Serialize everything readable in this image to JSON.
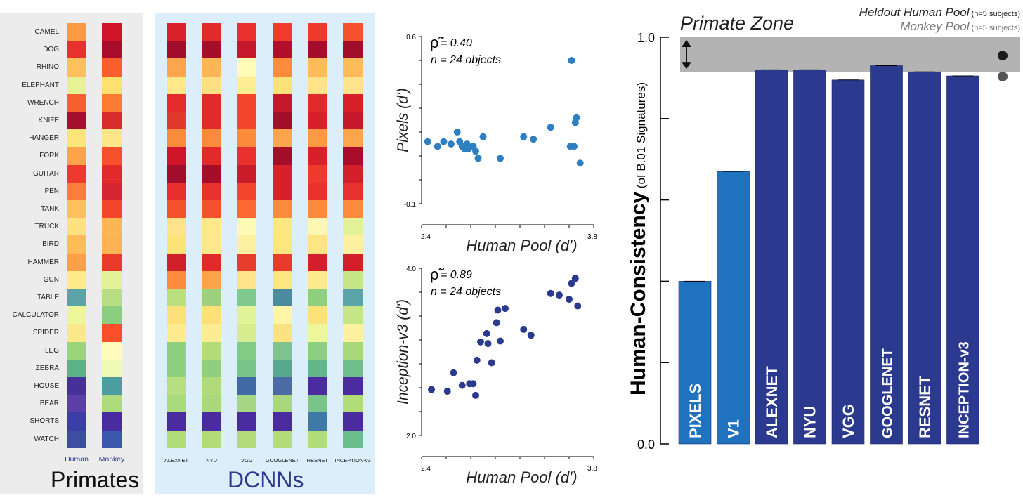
{
  "primates": {
    "title": "Primates",
    "columns": [
      "Human",
      "Monkey"
    ],
    "column_color": "#2b3a8f"
  },
  "dcnns": {
    "title": "DCNNs",
    "title_color": "#2b3a8f",
    "columns": [
      "ALEXNET",
      "NYU",
      "VGG",
      "GOOGLENET",
      "RESNET",
      "INCEPTION-v3"
    ]
  },
  "objects": [
    "CAMEL",
    "DOG",
    "RHINO",
    "ELEPHANT",
    "WRENCH",
    "KNIFE",
    "HANGER",
    "FORK",
    "GUITAR",
    "PEN",
    "TANK",
    "TRUCK",
    "BIRD",
    "HAMMER",
    "GUN",
    "TABLE",
    "CALCULATOR",
    "SPIDER",
    "LEG",
    "ZEBRA",
    "HOUSE",
    "BEAR",
    "SHORTS",
    "WATCH"
  ],
  "heatmap_colors": {
    "Human": [
      "#fb9a43",
      "#e8312c",
      "#fdc05c",
      "#e6f295",
      "#f5602e",
      "#a40f2d",
      "#fde47b",
      "#fba44b",
      "#ee3a2c",
      "#fb7c3c",
      "#fdc05c",
      "#fee282",
      "#fdbc57",
      "#fca04a",
      "#fdeb89",
      "#5aa3a6",
      "#eef69a",
      "#f9e98a",
      "#9cd47a",
      "#5ab287",
      "#47309a",
      "#5b3ea8",
      "#3c3ea8",
      "#3d4ea0"
    ],
    "Monkey": [
      "#d0152a",
      "#aa0c2b",
      "#fb5d2c",
      "#fde06e",
      "#fc7c33",
      "#d72c2c",
      "#fde68a",
      "#f7502c",
      "#e02a2c",
      "#d52530",
      "#f4462c",
      "#fdb656",
      "#fdb254",
      "#e93b2c",
      "#e1f299",
      "#b7dd84",
      "#8bce7f",
      "#fb4e2b",
      "#fefbbb",
      "#f0f9b4",
      "#4c9da0",
      "#aedc7c",
      "#4b2ba0",
      "#3a59ad"
    ],
    "ALEXNET": [
      "#da202a",
      "#a00e2b",
      "#fca54c",
      "#fee88a",
      "#e62c2b",
      "#e13a2c",
      "#fb8c3c",
      "#d0152a",
      "#a00e2b",
      "#e82f2b",
      "#f4522d",
      "#fee38a",
      "#fde478",
      "#d0212a",
      "#fc8a3c",
      "#b9e07c",
      "#fde077",
      "#feeb8e",
      "#8fd07e",
      "#8fd07e",
      "#b7df81",
      "#a9da7b",
      "#4b2ba0",
      "#b2dc7a"
    ],
    "NYU": [
      "#e02a2c",
      "#a40e2b",
      "#fdb656",
      "#fee083",
      "#e02a2c",
      "#e02a2c",
      "#fc8a3c",
      "#e02a2c",
      "#a40e2b",
      "#e8312c",
      "#f4522d",
      "#fee98a",
      "#fde98c",
      "#e02a2c",
      "#fba448",
      "#9ed17f",
      "#fde077",
      "#feec92",
      "#b4dc7a",
      "#90cf80",
      "#b1da7b",
      "#abd87c",
      "#4b2ba0",
      "#b2dc7a"
    ],
    "VGG": [
      "#e8312c",
      "#c4172a",
      "#fefcb7",
      "#feee93",
      "#f4462c",
      "#f4462c",
      "#fc8c3c",
      "#e8312c",
      "#c81c2a",
      "#f4462c",
      "#fc6a32",
      "#fefbb6",
      "#fdf0a0",
      "#e63d2c",
      "#fee38a",
      "#7fc88e",
      "#e1f299",
      "#d6ec8f",
      "#82cb86",
      "#79c489",
      "#3f6aa6",
      "#a7d682",
      "#4b2ba0",
      "#b2dc7a"
    ],
    "GOOGLENET": [
      "#f03a2c",
      "#b30e2b",
      "#fc8c3c",
      "#fde27a",
      "#c4172a",
      "#a40e2b",
      "#fca54c",
      "#a40e2b",
      "#d8202a",
      "#d8202a",
      "#fc8a3c",
      "#fde783",
      "#fde680",
      "#e93b2c",
      "#fde582",
      "#4b8b9f",
      "#fef6a6",
      "#fde281",
      "#7fc48c",
      "#57a98d",
      "#4c6ba6",
      "#a9d87c",
      "#4b2ba0",
      "#b2dc7a"
    ],
    "RESNET": [
      "#ee3a2c",
      "#a40e2b",
      "#fdbc57",
      "#fee388",
      "#e02a2c",
      "#d8202a",
      "#fb9a43",
      "#d8202a",
      "#ee3a2c",
      "#e8312c",
      "#fc8a3c",
      "#fef7b4",
      "#fde583",
      "#d21f2b",
      "#fee98c",
      "#8fd07e",
      "#fde27a",
      "#eef69a",
      "#8ccf80",
      "#63b688",
      "#4b2ba0",
      "#79c489",
      "#3f7aa6",
      "#b2dc7a"
    ],
    "INCEPTION-v3": [
      "#f4522d",
      "#a00e2b",
      "#fdbc57",
      "#fee38a",
      "#d8202a",
      "#c4172a",
      "#fca54c",
      "#aa0c2b",
      "#d21f2b",
      "#e8312c",
      "#fc8a3c",
      "#e1f299",
      "#fdf0a0",
      "#d21f2b",
      "#c6e589",
      "#5aa3a6",
      "#c6e589",
      "#fdf0a0",
      "#a9d87c",
      "#6fbf8c",
      "#4b2ba0",
      "#b2dc7a",
      "#4b2ba0",
      "#6cbd8c"
    ]
  },
  "scatter_top": {
    "rho_label": "= 0.40",
    "n_label": "n = 24 objects",
    "ylabel": "Pixels (d')",
    "xlabel": "Human Pool (d')",
    "xtick_labels": [
      "2.4",
      "3.8"
    ],
    "ytick_labels": [
      "0.6",
      "-0.1"
    ],
    "color": "#2e7fc1"
  },
  "scatter_bottom": {
    "rho_label": "= 0.89",
    "n_label": "n = 24 objects",
    "ylabel": "Inception-v3 (d')",
    "xlabel": "Human Pool (d')",
    "xtick_labels": [
      "2.4",
      "3.8"
    ],
    "ytick_labels": [
      "4.0",
      "2.0"
    ],
    "color": "#2b3a8f"
  },
  "bar_chart": {
    "zone_label": "Primate Zone",
    "legend": [
      {
        "name": "Heldout Human Pool",
        "note": "(n=5 subjects)",
        "color": "#1a1a1a"
      },
      {
        "name": "Monkey Pool",
        "note": "(n=5 subjects)",
        "color": "#555555"
      }
    ],
    "ylabel_main": "Human-Consistency",
    "ylabel_sub": "(of B.01 Signatures)",
    "ytick_labels": [
      "1.0",
      "0.0"
    ],
    "zone_color": "#b3b3b3",
    "pixels_color": "#1f72be",
    "dcnn_color": "#2b3a8f"
  },
  "chart_data": [
    {
      "type": "heatmap",
      "title": "Primates",
      "rows": [
        "CAMEL",
        "DOG",
        "RHINO",
        "ELEPHANT",
        "WRENCH",
        "KNIFE",
        "HANGER",
        "FORK",
        "GUITAR",
        "PEN",
        "TANK",
        "TRUCK",
        "BIRD",
        "HAMMER",
        "GUN",
        "TABLE",
        "CALCULATOR",
        "SPIDER",
        "LEG",
        "ZEBRA",
        "HOUSE",
        "BEAR",
        "SHORTS",
        "WATCH"
      ],
      "columns": [
        "Human",
        "Monkey"
      ]
    },
    {
      "type": "heatmap",
      "title": "DCNNs",
      "rows": [
        "CAMEL",
        "DOG",
        "RHINO",
        "ELEPHANT",
        "WRENCH",
        "KNIFE",
        "HANGER",
        "FORK",
        "GUITAR",
        "PEN",
        "TANK",
        "TRUCK",
        "BIRD",
        "HAMMER",
        "GUN",
        "TABLE",
        "CALCULATOR",
        "SPIDER",
        "LEG",
        "ZEBRA",
        "HOUSE",
        "BEAR",
        "SHORTS",
        "WATCH"
      ],
      "columns": [
        "ALEXNET",
        "NYU",
        "VGG",
        "GOOGLENET",
        "RESNET",
        "INCEPTION-v3"
      ]
    },
    {
      "type": "scatter",
      "xlabel": "Human Pool (d')",
      "ylabel": "Pixels (d')",
      "xlim": [
        2.4,
        3.8
      ],
      "ylim": [
        -0.1,
        0.6
      ],
      "points": [
        [
          2.45,
          0.16
        ],
        [
          2.53,
          0.14
        ],
        [
          2.58,
          0.16
        ],
        [
          2.64,
          0.15
        ],
        [
          2.69,
          0.2
        ],
        [
          2.71,
          0.16
        ],
        [
          2.73,
          0.14
        ],
        [
          2.75,
          0.13
        ],
        [
          2.77,
          0.15
        ],
        [
          2.78,
          0.13
        ],
        [
          2.82,
          0.14
        ],
        [
          2.84,
          0.12
        ],
        [
          2.86,
          0.09
        ],
        [
          2.9,
          0.18
        ],
        [
          3.04,
          0.09
        ],
        [
          3.23,
          0.18
        ],
        [
          3.31,
          0.17
        ],
        [
          3.45,
          0.22
        ],
        [
          3.62,
          0.5
        ],
        [
          3.64,
          0.14
        ],
        [
          3.65,
          0.24
        ],
        [
          3.66,
          0.26
        ],
        [
          3.69,
          0.07
        ],
        [
          3.61,
          0.14
        ]
      ]
    },
    {
      "type": "scatter",
      "xlabel": "Human Pool (d')",
      "ylabel": "Inception-v3 (d')",
      "xlim": [
        2.4,
        3.8
      ],
      "ylim": [
        2.0,
        4.0
      ],
      "points": [
        [
          2.48,
          2.55
        ],
        [
          2.61,
          2.53
        ],
        [
          2.66,
          2.75
        ],
        [
          2.73,
          2.6
        ],
        [
          2.79,
          2.62
        ],
        [
          2.82,
          2.62
        ],
        [
          2.84,
          2.48
        ],
        [
          2.85,
          2.9
        ],
        [
          2.88,
          3.12
        ],
        [
          2.93,
          3.22
        ],
        [
          2.94,
          3.1
        ],
        [
          2.97,
          2.87
        ],
        [
          3.01,
          3.35
        ],
        [
          3.02,
          3.5
        ],
        [
          3.04,
          3.13
        ],
        [
          3.08,
          3.52
        ],
        [
          3.23,
          3.27
        ],
        [
          3.29,
          3.2
        ],
        [
          3.45,
          3.7
        ],
        [
          3.52,
          3.68
        ],
        [
          3.6,
          3.63
        ],
        [
          3.62,
          3.82
        ],
        [
          3.65,
          3.88
        ],
        [
          3.67,
          3.55
        ]
      ]
    },
    {
      "type": "bar",
      "ylabel": "Human-Consistency (of B.01 Signatures)",
      "ylim": [
        0.0,
        1.0
      ],
      "categories": [
        "PIXELS",
        "V1",
        "ALEXNET",
        "NYU",
        "VGG",
        "GOOGLENET",
        "RESNET",
        "INCEPTION-v3"
      ],
      "values": [
        0.4,
        0.67,
        0.92,
        0.92,
        0.895,
        0.93,
        0.915,
        0.905
      ],
      "primate_zone": [
        0.915,
        1.0
      ],
      "reference_points": [
        {
          "name": "Heldout Human Pool",
          "value": 0.96
        },
        {
          "name": "Monkey Pool",
          "value": 0.905
        }
      ]
    }
  ]
}
